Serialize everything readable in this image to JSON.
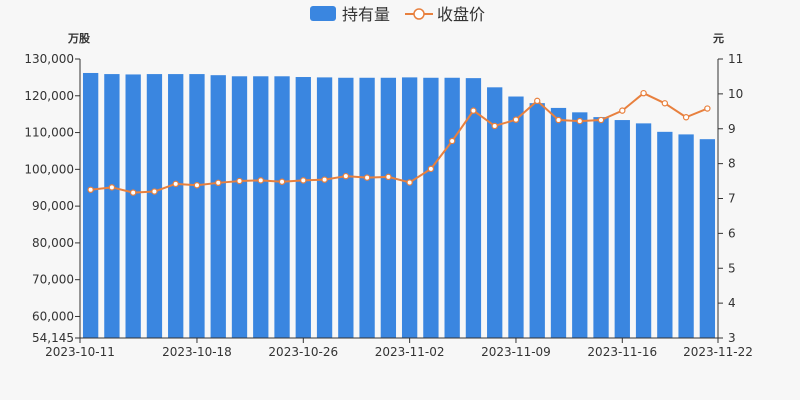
{
  "chart_data": {
    "type": "bar+line",
    "legend": {
      "position": "top-center",
      "items": [
        {
          "label": "持有量",
          "kind": "bar",
          "color": "#3a86e0"
        },
        {
          "label": "收盘价",
          "kind": "line",
          "color": "#e8803e"
        }
      ]
    },
    "left_axis": {
      "unit": "万股",
      "min": 54145,
      "max": 130000,
      "ticks": [
        "54,145",
        "60,000",
        "70,000",
        "80,000",
        "90,000",
        "100,000",
        "110,000",
        "120,000",
        "130,000"
      ],
      "tick_values": [
        54145,
        60000,
        70000,
        80000,
        90000,
        100000,
        110000,
        120000,
        130000
      ]
    },
    "right_axis": {
      "unit": "元",
      "min": 3,
      "max": 11,
      "ticks": [
        "3",
        "4",
        "5",
        "6",
        "7",
        "8",
        "9",
        "10",
        "11"
      ],
      "tick_values": [
        3,
        4,
        5,
        6,
        7,
        8,
        9,
        10,
        11
      ]
    },
    "x_tick_labels": [
      {
        "index": 0,
        "label": "2023-10-11"
      },
      {
        "index": 5,
        "label": "2023-10-18"
      },
      {
        "index": 10,
        "label": "2023-10-26"
      },
      {
        "index": 15,
        "label": "2023-11-02"
      },
      {
        "index": 20,
        "label": "2023-11-09"
      },
      {
        "index": 25,
        "label": "2023-11-16"
      },
      {
        "index": 29,
        "label": "2023-11-22"
      }
    ],
    "series": [
      {
        "name": "持有量",
        "type": "bar",
        "axis": "left",
        "color": "#3a86e0",
        "values": [
          126200,
          125900,
          125800,
          125900,
          125900,
          125900,
          125600,
          125300,
          125300,
          125300,
          125100,
          125000,
          124900,
          124900,
          124900,
          125000,
          124900,
          124900,
          124800,
          122300,
          119800,
          118000,
          116700,
          115500,
          114200,
          113400,
          112500,
          110200,
          109500,
          108200
        ]
      },
      {
        "name": "收盘价",
        "type": "line",
        "axis": "right",
        "color": "#e8803e",
        "values": [
          7.25,
          7.32,
          7.17,
          7.2,
          7.42,
          7.38,
          7.45,
          7.5,
          7.52,
          7.48,
          7.52,
          7.54,
          7.64,
          7.6,
          7.62,
          7.46,
          7.85,
          8.65,
          9.52,
          9.08,
          9.26,
          9.8,
          9.25,
          9.22,
          9.25,
          9.52,
          10.02,
          9.73,
          9.33,
          9.58
        ]
      }
    ]
  }
}
